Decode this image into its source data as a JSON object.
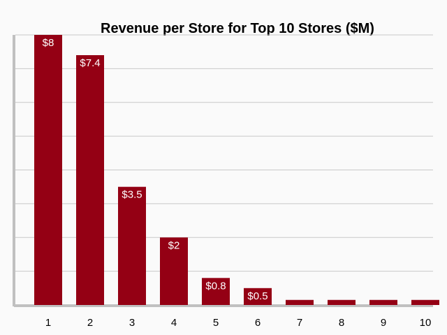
{
  "chart_data": {
    "type": "bar",
    "title": "Revenue per Store for Top 10 Stores ($M)",
    "categories": [
      "1",
      "2",
      "3",
      "4",
      "5",
      "6",
      "7",
      "8",
      "9",
      "10"
    ],
    "values": [
      8,
      7.4,
      3.5,
      2,
      0.8,
      0.5,
      0.15,
      0.15,
      0.15,
      0.15
    ],
    "data_labels": [
      "$8",
      "$7.4",
      "$3.5",
      "$2",
      "$0.8",
      "$0.5",
      "",
      "",
      "",
      ""
    ],
    "xlabel": "",
    "ylabel": "",
    "ylim": [
      0,
      8
    ],
    "grid": true,
    "colors": {
      "bar": "#940014",
      "grid": "#c8c8c8",
      "axis": "#c0c0c0",
      "background": "#fafafa"
    }
  }
}
